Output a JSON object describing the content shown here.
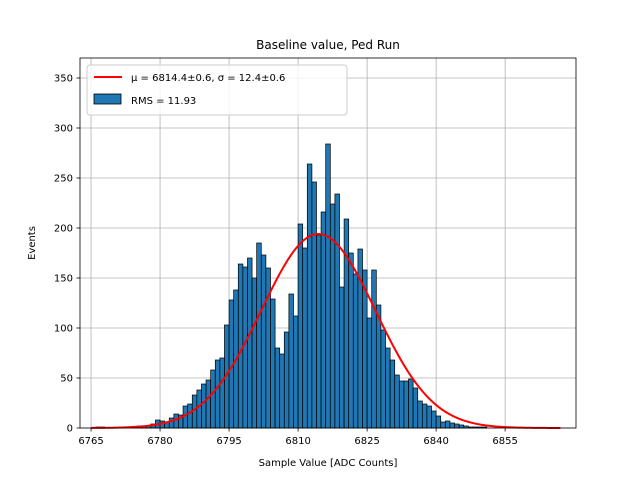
{
  "chart_data": {
    "type": "bar",
    "title": "Baseline value, Ped Run",
    "xlabel": "Sample Value [ADC Counts]",
    "ylabel": "Events",
    "xlim": [
      6762.6,
      6870.4
    ],
    "ylim": [
      0,
      370
    ],
    "x_ticks": [
      6765,
      6780,
      6795,
      6810,
      6825,
      6840,
      6855
    ],
    "y_ticks": [
      0,
      50,
      100,
      150,
      200,
      250,
      300,
      350
    ],
    "grid": true,
    "legend_position": "upper left",
    "bin_width": 1,
    "bins": [
      {
        "x": 6765,
        "y": 0
      },
      {
        "x": 6766,
        "y": 1
      },
      {
        "x": 6767,
        "y": 1
      },
      {
        "x": 6768,
        "y": 0
      },
      {
        "x": 6769,
        "y": 0
      },
      {
        "x": 6770,
        "y": 0
      },
      {
        "x": 6771,
        "y": 0
      },
      {
        "x": 6772,
        "y": 0
      },
      {
        "x": 6773,
        "y": 0
      },
      {
        "x": 6774,
        "y": 1
      },
      {
        "x": 6775,
        "y": 2
      },
      {
        "x": 6776,
        "y": 2
      },
      {
        "x": 6777,
        "y": 2
      },
      {
        "x": 6778,
        "y": 4
      },
      {
        "x": 6779,
        "y": 8
      },
      {
        "x": 6780,
        "y": 7
      },
      {
        "x": 6781,
        "y": 6
      },
      {
        "x": 6782,
        "y": 10
      },
      {
        "x": 6783,
        "y": 14
      },
      {
        "x": 6784,
        "y": 13
      },
      {
        "x": 6785,
        "y": 22
      },
      {
        "x": 6786,
        "y": 24
      },
      {
        "x": 6787,
        "y": 33
      },
      {
        "x": 6788,
        "y": 38
      },
      {
        "x": 6789,
        "y": 44
      },
      {
        "x": 6790,
        "y": 48
      },
      {
        "x": 6791,
        "y": 58
      },
      {
        "x": 6792,
        "y": 68
      },
      {
        "x": 6793,
        "y": 70
      },
      {
        "x": 6794,
        "y": 103
      },
      {
        "x": 6795,
        "y": 128
      },
      {
        "x": 6796,
        "y": 138
      },
      {
        "x": 6797,
        "y": 164
      },
      {
        "x": 6798,
        "y": 161
      },
      {
        "x": 6799,
        "y": 170
      },
      {
        "x": 6800,
        "y": 150
      },
      {
        "x": 6801,
        "y": 185
      },
      {
        "x": 6802,
        "y": 173
      },
      {
        "x": 6803,
        "y": 160
      },
      {
        "x": 6804,
        "y": 129
      },
      {
        "x": 6805,
        "y": 80
      },
      {
        "x": 6806,
        "y": 74
      },
      {
        "x": 6807,
        "y": 96
      },
      {
        "x": 6808,
        "y": 134
      },
      {
        "x": 6809,
        "y": 112
      },
      {
        "x": 6810,
        "y": 204
      },
      {
        "x": 6811,
        "y": 180
      },
      {
        "x": 6812,
        "y": 264
      },
      {
        "x": 6813,
        "y": 246
      },
      {
        "x": 6814,
        "y": 193
      },
      {
        "x": 6815,
        "y": 216
      },
      {
        "x": 6816,
        "y": 284
      },
      {
        "x": 6817,
        "y": 224
      },
      {
        "x": 6818,
        "y": 234
      },
      {
        "x": 6819,
        "y": 141
      },
      {
        "x": 6820,
        "y": 209
      },
      {
        "x": 6821,
        "y": 175
      },
      {
        "x": 6822,
        "y": 154
      },
      {
        "x": 6823,
        "y": 179
      },
      {
        "x": 6824,
        "y": 158
      },
      {
        "x": 6825,
        "y": 110
      },
      {
        "x": 6826,
        "y": 158
      },
      {
        "x": 6827,
        "y": 123
      },
      {
        "x": 6828,
        "y": 98
      },
      {
        "x": 6829,
        "y": 80
      },
      {
        "x": 6830,
        "y": 68
      },
      {
        "x": 6831,
        "y": 53
      },
      {
        "x": 6832,
        "y": 47
      },
      {
        "x": 6833,
        "y": 47
      },
      {
        "x": 6834,
        "y": 49
      },
      {
        "x": 6835,
        "y": 40
      },
      {
        "x": 6836,
        "y": 27
      },
      {
        "x": 6837,
        "y": 24
      },
      {
        "x": 6838,
        "y": 22
      },
      {
        "x": 6839,
        "y": 17
      },
      {
        "x": 6840,
        "y": 12
      },
      {
        "x": 6841,
        "y": 6
      },
      {
        "x": 6842,
        "y": 7
      },
      {
        "x": 6843,
        "y": 5
      },
      {
        "x": 6844,
        "y": 4
      },
      {
        "x": 6845,
        "y": 3
      },
      {
        "x": 6846,
        "y": 2
      },
      {
        "x": 6847,
        "y": 1
      },
      {
        "x": 6848,
        "y": 1
      },
      {
        "x": 6849,
        "y": 1
      },
      {
        "x": 6850,
        "y": 1
      },
      {
        "x": 6851,
        "y": 0
      },
      {
        "x": 6852,
        "y": 0
      },
      {
        "x": 6853,
        "y": 0
      },
      {
        "x": 6854,
        "y": 0
      },
      {
        "x": 6855,
        "y": 0
      },
      {
        "x": 6856,
        "y": 0
      },
      {
        "x": 6857,
        "y": 0
      }
    ],
    "series": [
      {
        "name": "RMS = 11.93",
        "kind": "histogram",
        "color": "#1f77b4",
        "edge_color": "#000000"
      },
      {
        "name": "μ = 6814.4±0.6, σ = 12.4±0.6",
        "kind": "gaussian_fit",
        "color": "#ff0000",
        "mu": 6814.4,
        "sigma": 12.4,
        "amplitude": 194,
        "x_range": [
          6765,
          6867
        ]
      }
    ]
  }
}
